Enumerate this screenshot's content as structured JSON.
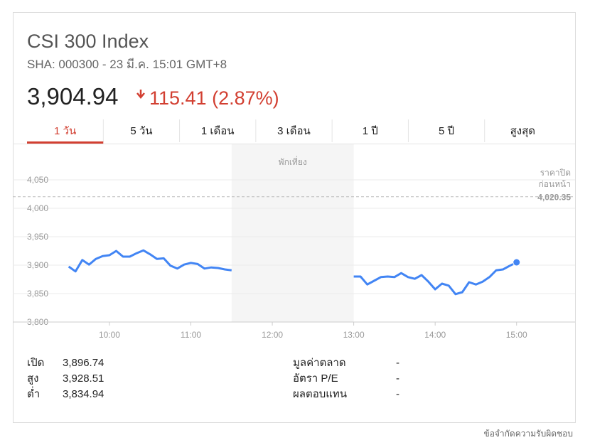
{
  "header": {
    "title": "CSI 300 Index",
    "subtitle": "SHA: 000300 - 23 มี.ค. 15:01 GMT+8",
    "price": "3,904.94",
    "change": "115.41 (2.87%)"
  },
  "tabs": [
    "1 วัน",
    "5 วัน",
    "1 เดือน",
    "3 เดือน",
    "1 ปี",
    "5 ปี",
    "สูงสุด"
  ],
  "chart_data": {
    "type": "line",
    "color": "#4285f4",
    "x": [
      9.5,
      9.5833,
      9.6667,
      9.75,
      9.8333,
      9.9167,
      10,
      10.0833,
      10.1667,
      10.25,
      10.3333,
      10.4167,
      10.5,
      10.5833,
      10.6667,
      10.75,
      10.8333,
      10.9167,
      11,
      11.0833,
      11.1667,
      11.25,
      11.3333,
      11.4167,
      11.5,
      12.25,
      13,
      13.0833,
      13.1667,
      13.25,
      13.3333,
      13.4167,
      13.5,
      13.5833,
      13.6667,
      13.75,
      13.8333,
      13.9167,
      14,
      14.0833,
      14.1667,
      14.25,
      14.3333,
      14.4167,
      14.5,
      14.5833,
      14.6667,
      14.75,
      14.8333,
      14.9167,
      15
    ],
    "values": [
      3897.5,
      3889,
      3909,
      3901,
      3911,
      3916,
      3917.5,
      3925,
      3915,
      3915,
      3921,
      3926,
      3919,
      3911,
      3912,
      3899,
      3894,
      3901,
      3904,
      3902,
      3894,
      3896,
      3895,
      3892.5,
      3891,
      null,
      3880,
      3880,
      3866,
      3872.5,
      3879,
      3880,
      3879,
      3886,
      3879,
      3876,
      3882.5,
      3871,
      3857.5,
      3867.5,
      3864,
      3849,
      3852.5,
      3870,
      3866,
      3871,
      3879,
      3891,
      3892.5,
      3899,
      3904.94
    ],
    "xlim": [
      9,
      15.5
    ],
    "xticks": [
      {
        "value": 10,
        "label": "10:00"
      },
      {
        "value": 11,
        "label": "11:00"
      },
      {
        "value": 12,
        "label": "12:00"
      },
      {
        "value": 13,
        "label": "13:00"
      },
      {
        "value": 14,
        "label": "14:00"
      },
      {
        "value": 15,
        "label": "15:00"
      }
    ],
    "ylim": [
      3800,
      4100
    ],
    "yticks": [
      {
        "value": 3800,
        "label": "3,800"
      },
      {
        "value": 3850,
        "label": "3,850"
      },
      {
        "value": 3900,
        "label": "3,900"
      },
      {
        "value": 3950,
        "label": "3,950"
      },
      {
        "value": 4000,
        "label": "4,000"
      },
      {
        "value": 4050,
        "label": "4,050"
      }
    ],
    "grid": true,
    "break": [
      11.5,
      13
    ],
    "break_label": "พักเที่ยง",
    "previous_close": {
      "value": 4020.35,
      "label": "4,020.35"
    },
    "previous_close_title": [
      "ราคาปิด",
      "ก่อนหน้า"
    ]
  },
  "stats": {
    "left": [
      [
        "เปิด",
        "3,896.74"
      ],
      [
        "สูง",
        "3,928.51"
      ],
      [
        "ต่ำ",
        "3,834.94"
      ]
    ],
    "right": [
      [
        "มูลค่าตลาด",
        "-"
      ],
      [
        "อัตรา P/E",
        "-"
      ],
      [
        "ผลตอบแทน",
        "-"
      ]
    ]
  },
  "footer": "ข้อจำกัดความรับผิดชอบ"
}
